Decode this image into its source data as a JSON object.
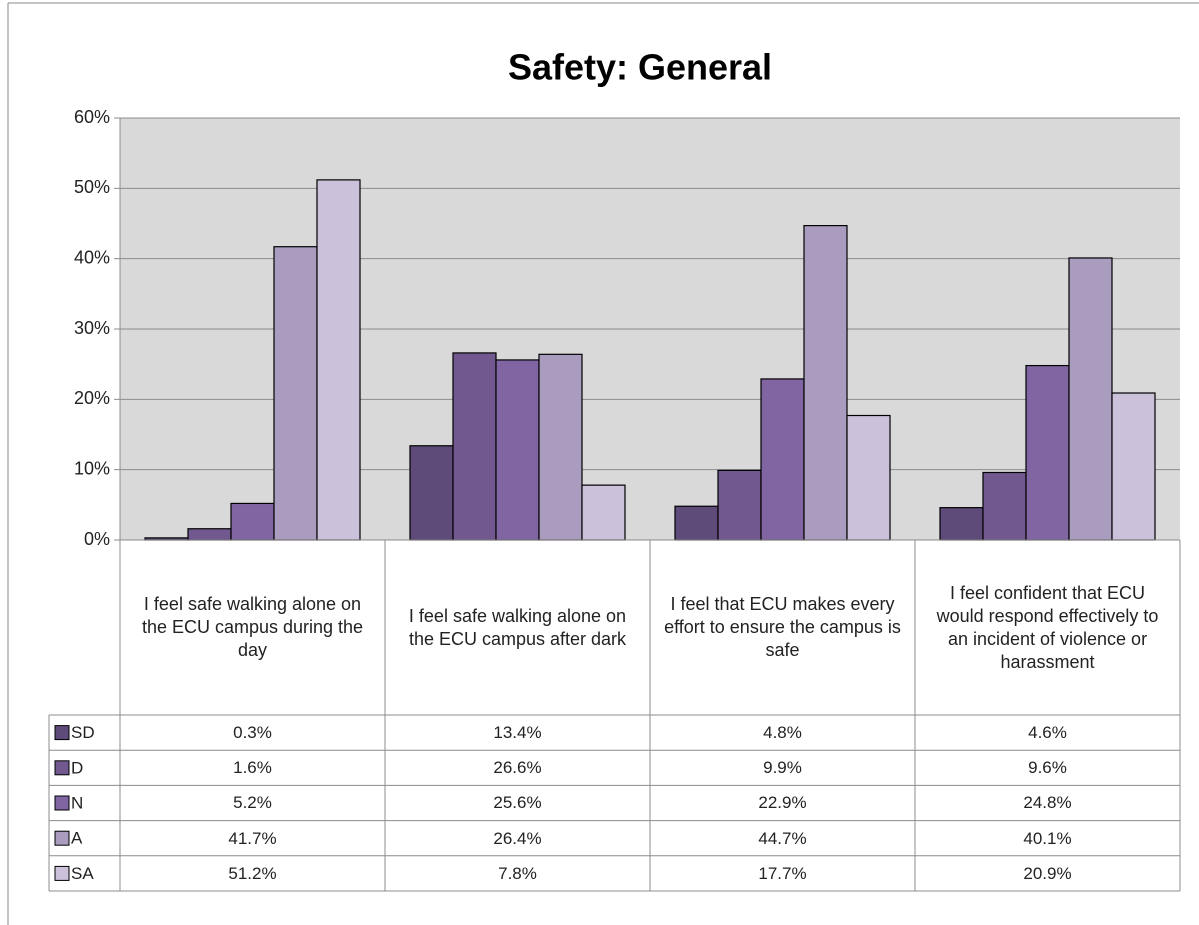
{
  "chart_data": {
    "type": "bar",
    "title": "Safety: General",
    "categories": [
      "I feel safe walking alone on the ECU campus during the day",
      "I feel safe walking alone on the ECU campus after dark",
      "I feel that ECU makes every effort to ensure the campus is safe",
      "I feel confident that ECU would respond effectively to an incident of violence or harassment"
    ],
    "series": [
      {
        "name": "SD",
        "color": "#5f4b7a",
        "values": [
          0.3,
          13.4,
          4.8,
          4.6
        ],
        "value_labels": [
          "0.3%",
          "13.4%",
          "4.8%",
          "4.6%"
        ]
      },
      {
        "name": "D",
        "color": "#71598f",
        "values": [
          1.6,
          26.6,
          9.9,
          9.6
        ],
        "value_labels": [
          "1.6%",
          "26.6%",
          "9.9%",
          "9.6%"
        ]
      },
      {
        "name": "N",
        "color": "#8165a3",
        "values": [
          5.2,
          25.6,
          22.9,
          24.8
        ],
        "value_labels": [
          "5.2%",
          "25.6%",
          "22.9%",
          "24.8%"
        ]
      },
      {
        "name": "A",
        "color": "#a99cbf",
        "values": [
          41.7,
          26.4,
          44.7,
          40.1
        ],
        "value_labels": [
          "41.7%",
          "26.4%",
          "44.7%",
          "40.1%"
        ]
      },
      {
        "name": "SA",
        "color": "#cbc1da",
        "values": [
          51.2,
          7.8,
          17.7,
          20.9
        ],
        "value_labels": [
          "51.2%",
          "7.8%",
          "17.7%",
          "20.9%"
        ]
      }
    ],
    "ylim": [
      0,
      60
    ],
    "yticks": [
      {
        "value": 0,
        "label": "0%"
      },
      {
        "value": 10,
        "label": "10%"
      },
      {
        "value": 20,
        "label": "20%"
      },
      {
        "value": 30,
        "label": "30%"
      },
      {
        "value": 40,
        "label": "40%"
      },
      {
        "value": 50,
        "label": "50%"
      },
      {
        "value": 60,
        "label": "60%"
      }
    ],
    "grid": true
  }
}
